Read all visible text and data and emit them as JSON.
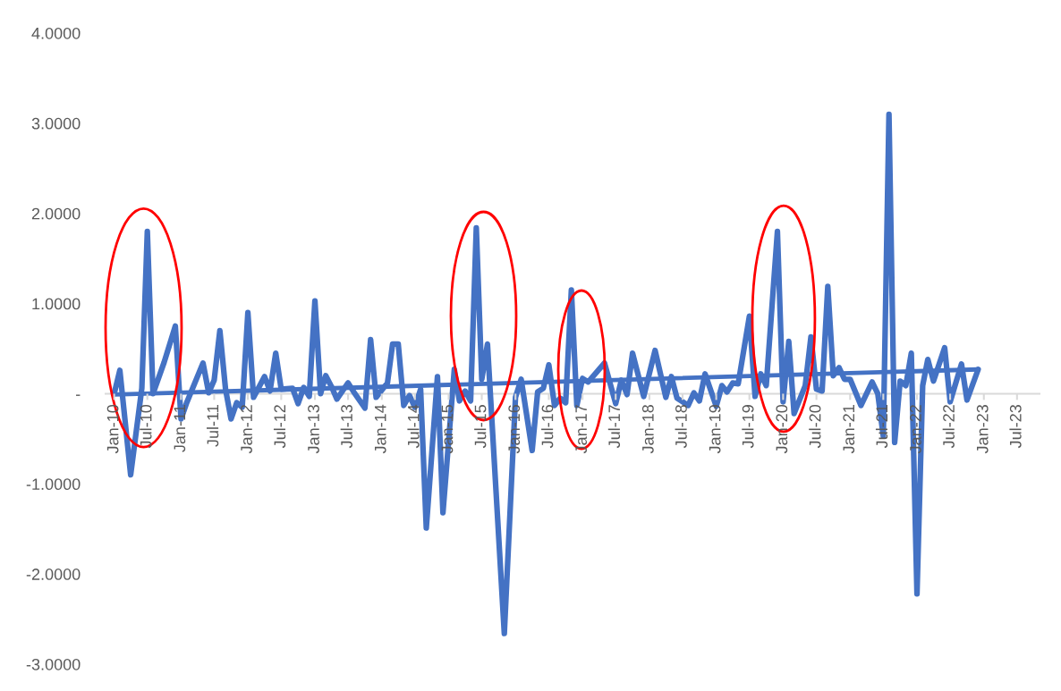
{
  "chart_data": {
    "type": "line",
    "series": [
      {
        "color": "#4472c4",
        "x": [
          "2010-01",
          "2010-02",
          "2010-04",
          "2010-06",
          "2010-07",
          "2010-08",
          "2010-10",
          "2010-12",
          "2011-01",
          "2011-02",
          "2011-05",
          "2011-06",
          "2011-07",
          "2011-08",
          "2011-09",
          "2011-10",
          "2011-11",
          "2011-12",
          "2012-01",
          "2012-02",
          "2012-04",
          "2012-05",
          "2012-06",
          "2012-07",
          "2012-09",
          "2012-10",
          "2012-11",
          "2012-12",
          "2013-01",
          "2013-02",
          "2013-03",
          "2013-04",
          "2013-05",
          "2013-07",
          "2013-08",
          "2013-10",
          "2013-11",
          "2013-12",
          "2014-02",
          "2014-03",
          "2014-04",
          "2014-05",
          "2014-06",
          "2014-07",
          "2014-08",
          "2014-09",
          "2014-11",
          "2014-12",
          "2015-02",
          "2015-03",
          "2015-04",
          "2015-05",
          "2015-06",
          "2015-07",
          "2015-08",
          "2015-11",
          "2016-01",
          "2016-02",
          "2016-04",
          "2016-05",
          "2016-06",
          "2016-07",
          "2016-08",
          "2016-09",
          "2016-10",
          "2016-11",
          "2016-12",
          "2017-01",
          "2017-02",
          "2017-05",
          "2017-07",
          "2017-08",
          "2017-09",
          "2017-10",
          "2017-12",
          "2018-02",
          "2018-04",
          "2018-05",
          "2018-06",
          "2018-08",
          "2018-09",
          "2018-10",
          "2018-11",
          "2019-01",
          "2019-02",
          "2019-03",
          "2019-04",
          "2019-05",
          "2019-07",
          "2019-08",
          "2019-09",
          "2019-10",
          "2019-12",
          "2020-01",
          "2020-02",
          "2020-03",
          "2020-05",
          "2020-06",
          "2020-07",
          "2020-08",
          "2020-09",
          "2020-10",
          "2020-11",
          "2020-12",
          "2021-01",
          "2021-03",
          "2021-05",
          "2021-06",
          "2021-07",
          "2021-08",
          "2021-09",
          "2021-10",
          "2021-11",
          "2021-12",
          "2022-01",
          "2022-02",
          "2022-03",
          "2022-04",
          "2022-06",
          "2022-07",
          "2022-09",
          "2022-10",
          "2022-12"
        ],
        "values": [
          0.0,
          0.26,
          -0.9,
          0.06,
          1.8,
          0.0,
          0.35,
          0.75,
          -0.28,
          -0.1,
          0.34,
          0.01,
          0.15,
          0.7,
          0.05,
          -0.28,
          -0.1,
          -0.15,
          0.9,
          -0.04,
          0.19,
          0.03,
          0.45,
          0.05,
          0.06,
          -0.11,
          0.07,
          -0.03,
          1.03,
          0.0,
          0.2,
          0.08,
          -0.06,
          0.12,
          0.02,
          -0.16,
          0.6,
          -0.04,
          0.12,
          0.55,
          0.55,
          -0.13,
          -0.02,
          -0.15,
          0.05,
          -1.49,
          0.19,
          -1.32,
          0.27,
          -0.08,
          0.03,
          -0.08,
          1.84,
          0.16,
          0.55,
          -2.66,
          -0.04,
          0.16,
          -0.63,
          0.02,
          0.06,
          0.32,
          -0.13,
          -0.05,
          -0.1,
          1.15,
          -0.13,
          0.17,
          0.13,
          0.34,
          -0.11,
          0.15,
          -0.01,
          0.45,
          -0.03,
          0.48,
          -0.04,
          0.19,
          -0.05,
          -0.13,
          0.01,
          -0.08,
          0.22,
          -0.14,
          0.09,
          0.02,
          0.12,
          0.11,
          0.86,
          -0.03,
          0.22,
          0.09,
          1.8,
          -0.09,
          0.58,
          -0.22,
          0.09,
          0.63,
          0.05,
          0.03,
          1.19,
          0.2,
          0.29,
          0.16,
          0.16,
          -0.13,
          0.13,
          0.0,
          -0.47,
          3.1,
          -0.54,
          0.14,
          0.09,
          0.45,
          -2.22,
          0.09,
          0.38,
          0.14,
          0.51,
          -0.09,
          0.33,
          -0.07,
          0.27
        ]
      },
      {
        "color": "#4472c4",
        "x": [
          "2010-01",
          "2022-12"
        ],
        "values": [
          -0.01,
          0.27
        ]
      }
    ],
    "xlim": [
      "2009-11-15",
      "2023-11-01"
    ],
    "xticks": [
      {
        "value": "2010-01",
        "label": "Jan-10"
      },
      {
        "value": "2010-07",
        "label": "Jul-10"
      },
      {
        "value": "2011-01",
        "label": "Jan-11"
      },
      {
        "value": "2011-07",
        "label": "Jul-11"
      },
      {
        "value": "2012-01",
        "label": "Jan-12"
      },
      {
        "value": "2012-07",
        "label": "Jul-12"
      },
      {
        "value": "2013-01",
        "label": "Jan-13"
      },
      {
        "value": "2013-07",
        "label": "Jul-13"
      },
      {
        "value": "2014-01",
        "label": "Jan-14"
      },
      {
        "value": "2014-07",
        "label": "Jul-14"
      },
      {
        "value": "2015-01",
        "label": "Jan-15"
      },
      {
        "value": "2015-07",
        "label": "Jul-15"
      },
      {
        "value": "2016-01",
        "label": "Jan-16"
      },
      {
        "value": "2016-07",
        "label": "Jul-16"
      },
      {
        "value": "2017-01",
        "label": "Jan-17"
      },
      {
        "value": "2017-07",
        "label": "Jul-17"
      },
      {
        "value": "2018-01",
        "label": "Jan-18"
      },
      {
        "value": "2018-07",
        "label": "Jul-18"
      },
      {
        "value": "2019-01",
        "label": "Jan-19"
      },
      {
        "value": "2019-07",
        "label": "Jul-19"
      },
      {
        "value": "2020-01",
        "label": "Jan-20"
      },
      {
        "value": "2020-07",
        "label": "Jul-20"
      },
      {
        "value": "2021-01",
        "label": "Jan-21"
      },
      {
        "value": "2021-07",
        "label": "Jul-21"
      },
      {
        "value": "2022-01",
        "label": "Jan-22"
      },
      {
        "value": "2022-07",
        "label": "Jul-22"
      },
      {
        "value": "2023-01",
        "label": "Jan-23"
      },
      {
        "value": "2023-07",
        "label": "Jul-23"
      }
    ],
    "ylim": [
      -3,
      4
    ],
    "yticks": [
      {
        "value": -3,
        "label": "-3.0000"
      },
      {
        "value": -2,
        "label": "-2.0000"
      },
      {
        "value": -1,
        "label": "-1.0000"
      },
      {
        "value": 0,
        "label": "-"
      },
      {
        "value": 1,
        "label": "1.0000"
      },
      {
        "value": 2,
        "label": "2.0000"
      },
      {
        "value": 3,
        "label": "3.0000"
      },
      {
        "value": 4,
        "label": "4.0000"
      }
    ],
    "grid": false,
    "line_style": "solid"
  }
}
